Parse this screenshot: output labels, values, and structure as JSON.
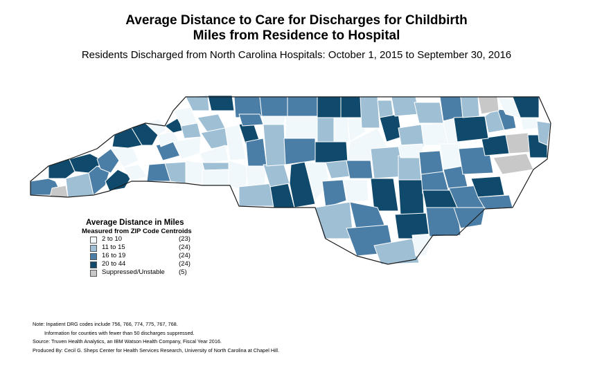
{
  "title_line1": "Average Distance to Care for Discharges for Childbirth",
  "title_line2": "Miles from Residence to Hospital",
  "subtitle": "Residents Discharged from North Carolina Hospitals: October 1, 2015 to September 30, 2016",
  "legend": {
    "title": "Average Distance in Miles",
    "subtitle": "Measured from ZIP Code Centroids",
    "items": [
      {
        "label": "2 to 10",
        "count": "(23)",
        "color": "#f0f8fb"
      },
      {
        "label": "11 to 15",
        "count": "(24)",
        "color": "#9fbfd5"
      },
      {
        "label": "16 to 19",
        "count": "(24)",
        "color": "#4b7ea6"
      },
      {
        "label": "20 to 44",
        "count": "(24)",
        "color": "#0f4a6c"
      },
      {
        "label": "Suppressed/Unstable",
        "count": "(5)",
        "color": "#c8c8c8"
      }
    ]
  },
  "notes": [
    "Note: Inpatient DRG codes include 756, 766, 774, 775, 767, 768.",
    "Information for counties with fewer than 50 discharges suppressed.",
    "Source: Truven Health Analytics, an IBM Watson Health Company, Fiscal Year 2016.",
    "Produced By: Cecil G. Sheps Center for Health Services Research, University of North Carolina at Chapel Hill."
  ],
  "map_data": {
    "class_colors": {
      "c1": "#f0f8fb",
      "c2": "#9fbfd5",
      "c3": "#4b7ea6",
      "c4": "#0f4a6c",
      "sup": "#c8c8c8"
    }
  }
}
